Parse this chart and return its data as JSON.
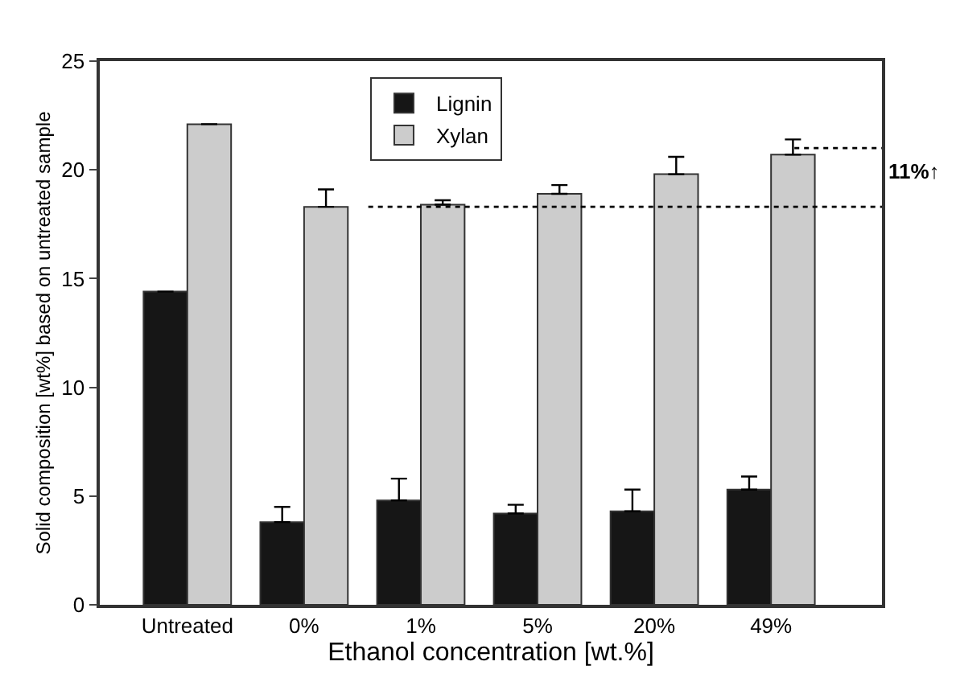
{
  "chart_data": {
    "type": "bar",
    "xlabel": "Ethanol concentration [wt.%]",
    "ylabel": "Solid composition [wt%] based on untreated sample",
    "categories": [
      "Untreated",
      "0%",
      "1%",
      "5%",
      "20%",
      "49%"
    ],
    "series": [
      {
        "name": "Lignin",
        "color": "#161616",
        "values": [
          14.4,
          3.8,
          4.8,
          4.2,
          4.3,
          5.3
        ],
        "errors": [
          null,
          [
            3.8,
            4.5
          ],
          [
            4.8,
            5.8
          ],
          [
            4.2,
            4.6
          ],
          [
            4.3,
            5.3
          ],
          [
            5.3,
            5.9
          ]
        ]
      },
      {
        "name": "Xylan",
        "color": "#cccccc",
        "values": [
          22.1,
          18.3,
          18.4,
          18.9,
          19.8,
          20.7
        ],
        "errors": [
          null,
          [
            18.3,
            19.1
          ],
          [
            18.4,
            18.6
          ],
          [
            18.9,
            19.3
          ],
          [
            19.8,
            20.6
          ],
          [
            20.7,
            21.4
          ]
        ]
      }
    ],
    "ylim": [
      0,
      25
    ],
    "yticks": [
      0,
      5,
      10,
      15,
      20,
      25
    ],
    "legend": "top",
    "ref_lines": [
      {
        "axis": "y",
        "value": 18.3,
        "line_style": "dotted",
        "color": "#000000"
      },
      {
        "axis": "y",
        "value": 21.0,
        "line_style": "dotted",
        "color": "#000000"
      }
    ],
    "annotations": [
      "11%↑"
    ]
  }
}
